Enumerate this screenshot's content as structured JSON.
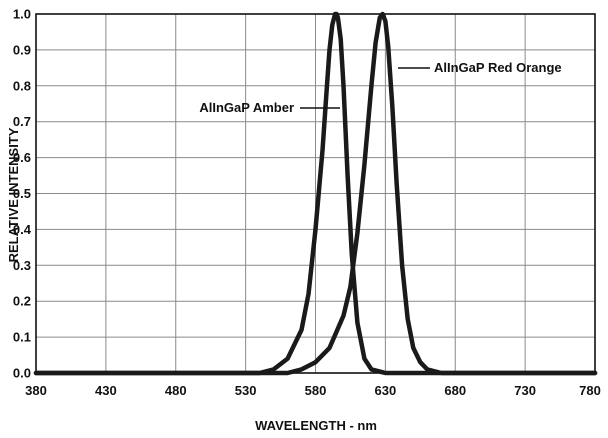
{
  "chart_data": {
    "type": "line",
    "xlabel": "WAVELENGTH - nm",
    "ylabel": "RELATIVE INTENSITY",
    "xlim": [
      380,
      780
    ],
    "ylim": [
      0,
      1.0
    ],
    "xticks": [
      380,
      430,
      480,
      530,
      580,
      630,
      680,
      730,
      780
    ],
    "xtick_labels": [
      "380",
      "430",
      "480",
      "530",
      "580",
      "630",
      "680",
      "730",
      "780"
    ],
    "yticks": [
      0,
      0.1,
      0.2,
      0.3,
      0.4,
      0.5,
      0.6,
      0.7,
      0.8,
      0.9,
      1.0
    ],
    "ytick_labels": [
      "0.0",
      "0.1",
      "0.2",
      "0.3",
      "0.4",
      "0.5",
      "0.6",
      "0.7",
      "0.8",
      "0.9",
      "1.0"
    ],
    "grid": true,
    "series": [
      {
        "name": "AlInGaP Amber",
        "x": [
          540,
          550,
          560,
          570,
          575,
          580,
          585,
          588,
          590,
          592,
          594,
          595,
          596,
          598,
          600,
          603,
          606,
          610,
          615,
          620,
          630,
          640
        ],
        "y": [
          0.0,
          0.01,
          0.04,
          0.12,
          0.22,
          0.4,
          0.62,
          0.79,
          0.9,
          0.97,
          1.0,
          1.0,
          0.99,
          0.93,
          0.8,
          0.55,
          0.33,
          0.14,
          0.04,
          0.01,
          0.0,
          0.0
        ]
      },
      {
        "name": "AlInGaP Red Orange",
        "x": [
          560,
          570,
          580,
          590,
          600,
          605,
          610,
          615,
          620,
          623,
          626,
          628,
          630,
          632,
          635,
          638,
          642,
          646,
          650,
          655,
          660,
          670,
          680
        ],
        "y": [
          0.0,
          0.01,
          0.03,
          0.07,
          0.16,
          0.24,
          0.39,
          0.58,
          0.8,
          0.92,
          0.99,
          1.0,
          0.98,
          0.91,
          0.74,
          0.53,
          0.3,
          0.15,
          0.07,
          0.03,
          0.01,
          0.0,
          0.0
        ]
      }
    ],
    "annotations": [
      "AlInGaP Amber",
      "AlInGaP Red Orange"
    ]
  }
}
